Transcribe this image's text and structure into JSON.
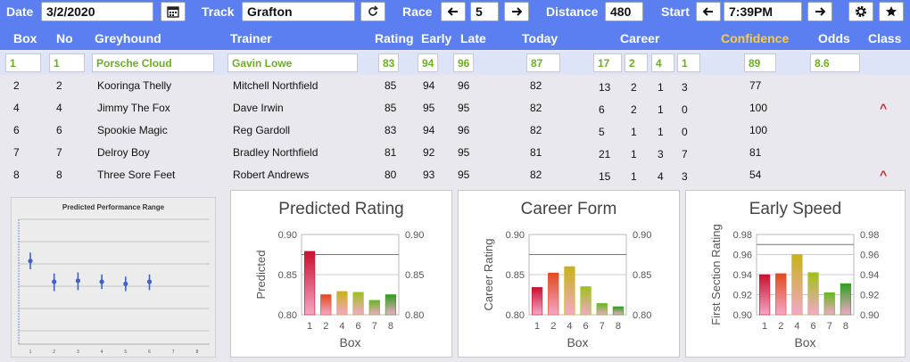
{
  "toolbar": {
    "date_label": "Date",
    "date_value": "3/2/2020",
    "calendar_icon": "calendar-icon",
    "track_label": "Track",
    "track_value": "Grafton",
    "refresh_icon": "refresh-icon",
    "race_label": "Race",
    "race_value": "5",
    "distance_label": "Distance",
    "distance_value": "480",
    "start_label": "Start",
    "start_value": "7:39PM",
    "settings_icon": "gear-icon",
    "favorite_icon": "star-icon"
  },
  "columns": {
    "box": "Box",
    "no": "No",
    "greyhound": "Greyhound",
    "trainer": "Trainer",
    "rating": "Rating",
    "early": "Early",
    "late": "Late",
    "today": "Today",
    "career": "Career",
    "confidence": "Confidence",
    "odds": "Odds",
    "class": "Class"
  },
  "colors": {
    "header_bg": "#5b7ff0",
    "confidence_header": "#ffcc33",
    "selected_text": "#6ab020",
    "caret": "#c0272d"
  },
  "selected": {
    "box": "1",
    "no": "1",
    "greyhound": "Porsche Cloud",
    "trainer": "Gavin Lowe",
    "rating": "83",
    "early": "94",
    "late": "96",
    "today": "87",
    "career": [
      "17",
      "2",
      "4",
      "1"
    ],
    "confidence": "89",
    "odds": "8.6"
  },
  "rows": [
    {
      "box": "2",
      "no": "2",
      "greyhound": "Kooringa Thelly",
      "trainer": "Mitchell Northfield",
      "rating": "85",
      "early": "94",
      "late": "96",
      "today": "82",
      "career": [
        "13",
        "2",
        "1",
        "3"
      ],
      "confidence": "77",
      "class_up": false
    },
    {
      "box": "4",
      "no": "4",
      "greyhound": "Jimmy The Fox",
      "trainer": "Dave Irwin",
      "rating": "85",
      "early": "95",
      "late": "95",
      "today": "82",
      "career": [
        "6",
        "2",
        "1",
        "0"
      ],
      "confidence": "100",
      "class_up": true
    },
    {
      "box": "6",
      "no": "6",
      "greyhound": "Spookie Magic",
      "trainer": "Reg Gardoll",
      "rating": "83",
      "early": "94",
      "late": "96",
      "today": "82",
      "career": [
        "5",
        "1",
        "1",
        "0"
      ],
      "confidence": "100",
      "class_up": false
    },
    {
      "box": "7",
      "no": "7",
      "greyhound": "Delroy Boy",
      "trainer": "Bradley Northfield",
      "rating": "81",
      "early": "92",
      "late": "95",
      "today": "81",
      "career": [
        "21",
        "1",
        "3",
        "7"
      ],
      "confidence": "81",
      "class_up": false
    },
    {
      "box": "8",
      "no": "8",
      "greyhound": "Three Sore Feet",
      "trainer": "Robert Andrews",
      "rating": "80",
      "early": "93",
      "late": "95",
      "today": "82",
      "career": [
        "15",
        "1",
        "4",
        "3"
      ],
      "confidence": "54",
      "class_up": true
    }
  ],
  "class_up_glyph": "^",
  "chart_data": [
    {
      "type": "scatter",
      "title": "Predicted Performance Range",
      "x": [
        1,
        2,
        3,
        4,
        5,
        6
      ],
      "values": [
        0.86,
        0.84,
        0.841,
        0.84,
        0.838,
        0.84
      ],
      "low": [
        0.852,
        0.831,
        0.832,
        0.833,
        0.831,
        0.832
      ],
      "high": [
        0.868,
        0.848,
        0.849,
        0.847,
        0.845,
        0.847
      ],
      "xticks": [
        "1",
        "2",
        "3",
        "4",
        "5",
        "6",
        "7",
        "8"
      ],
      "ylim": [
        0.78,
        0.9
      ]
    },
    {
      "type": "bar",
      "title": "Predicted Rating",
      "xlabel": "Box",
      "ylabel": "Predicted",
      "categories": [
        "1",
        "2",
        "4",
        "6",
        "7",
        "8"
      ],
      "values": [
        0.879,
        0.825,
        0.829,
        0.828,
        0.818,
        0.825
      ],
      "ylim": [
        0.8,
        0.9
      ],
      "yticks": [
        "0.80",
        "0.85",
        "0.90"
      ],
      "reference_line": 0.875
    },
    {
      "type": "bar",
      "title": "Career Form",
      "xlabel": "Box",
      "ylabel": "Career Rating",
      "categories": [
        "1",
        "2",
        "4",
        "6",
        "7",
        "8"
      ],
      "values": [
        0.834,
        0.852,
        0.86,
        0.835,
        0.814,
        0.81
      ],
      "ylim": [
        0.8,
        0.9
      ],
      "yticks": [
        "0.80",
        "0.85",
        "0.90"
      ],
      "reference_line": 0.875
    },
    {
      "type": "bar",
      "title": "Early Speed",
      "xlabel": "Box",
      "ylabel": "First Section Rating",
      "categories": [
        "1",
        "2",
        "4",
        "6",
        "7",
        "8"
      ],
      "values": [
        0.94,
        0.941,
        0.96,
        0.942,
        0.922,
        0.931
      ],
      "ylim": [
        0.9,
        0.98
      ],
      "yticks": [
        "0.90",
        "0.92",
        "0.94",
        "0.96",
        "0.98"
      ],
      "reference_line": 0.97
    }
  ]
}
